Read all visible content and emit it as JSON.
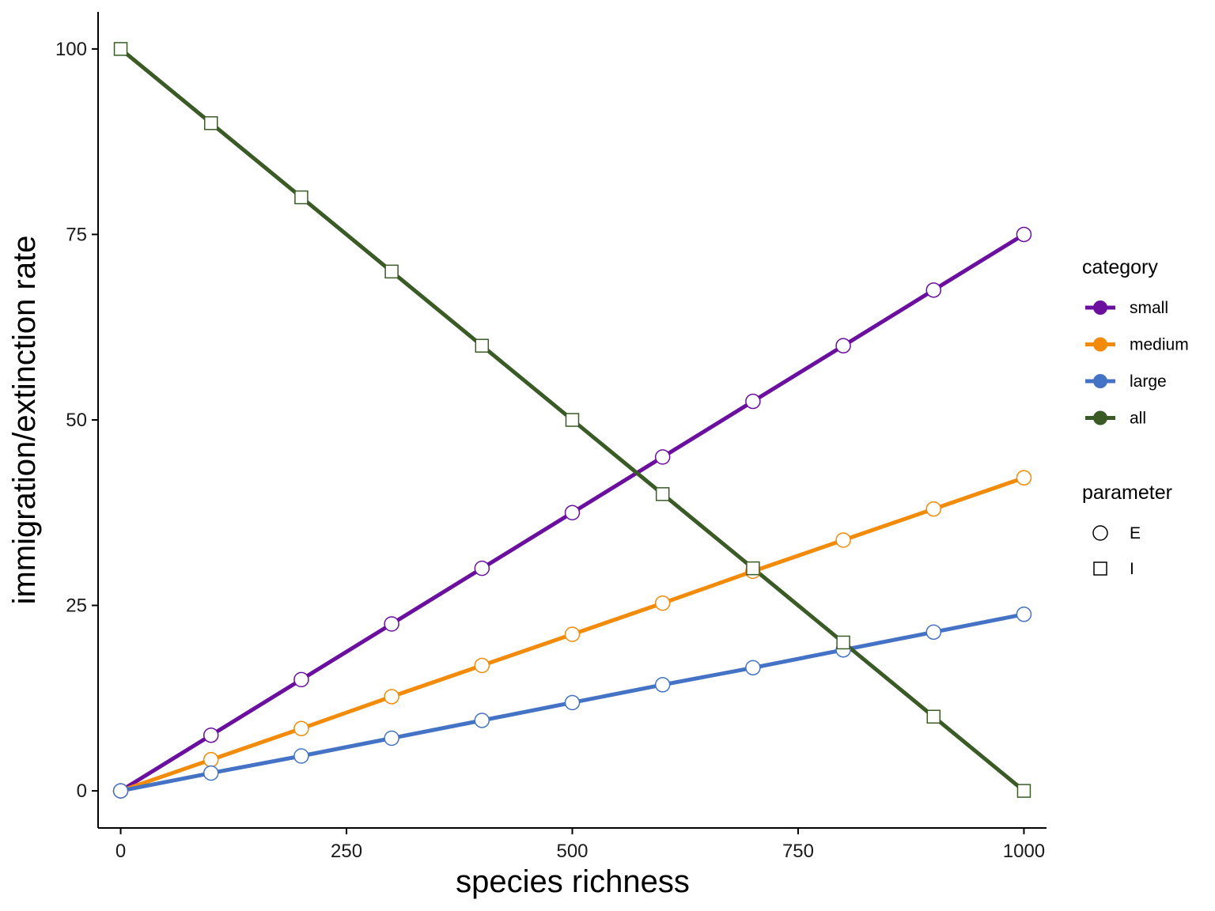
{
  "chart_data": {
    "type": "line",
    "xlabel": "species richness",
    "ylabel": "immigration/extinction rate",
    "xlim": [
      -25,
      1025
    ],
    "ylim": [
      -5,
      105
    ],
    "x_ticks": [
      0,
      250,
      500,
      750,
      1000
    ],
    "y_ticks": [
      0,
      25,
      50,
      75,
      100
    ],
    "x_tick_labels": [
      "0",
      "250",
      "500",
      "750",
      "1000"
    ],
    "y_tick_labels": [
      "0",
      "25",
      "50",
      "75",
      "100"
    ],
    "grid": false,
    "legend_position": "right",
    "x": [
      0,
      100,
      200,
      300,
      400,
      500,
      600,
      700,
      800,
      900,
      1000
    ],
    "series": [
      {
        "name": "small",
        "parameter": "E",
        "color": "#6a0f9e",
        "values": [
          0,
          7.5,
          15,
          22.5,
          30,
          37.5,
          45,
          52.5,
          60,
          67.5,
          75
        ]
      },
      {
        "name": "medium",
        "parameter": "E",
        "color": "#f28a0a",
        "values": [
          0,
          4.2,
          8.4,
          12.7,
          16.9,
          21.1,
          25.3,
          29.6,
          33.8,
          38.0,
          42.2
        ]
      },
      {
        "name": "large",
        "parameter": "E",
        "color": "#4472c4",
        "values": [
          0,
          2.4,
          4.7,
          7.1,
          9.5,
          11.9,
          14.3,
          16.6,
          19.0,
          21.4,
          23.8
        ]
      },
      {
        "name": "all",
        "parameter": "I",
        "color": "#3a5a26",
        "values": [
          100,
          90,
          80,
          70,
          60,
          50,
          40,
          30,
          20,
          10,
          0
        ]
      }
    ],
    "legend": {
      "category_title": "category",
      "category_items": [
        {
          "label": "small",
          "color": "#6a0f9e"
        },
        {
          "label": "medium",
          "color": "#f28a0a"
        },
        {
          "label": "large",
          "color": "#4472c4"
        },
        {
          "label": "all",
          "color": "#3a5a26"
        }
      ],
      "parameter_title": "parameter",
      "parameter_items": [
        {
          "label": "E",
          "shape": "circle"
        },
        {
          "label": "I",
          "shape": "square"
        }
      ]
    }
  }
}
